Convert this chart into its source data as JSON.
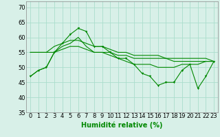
{
  "x": [
    0,
    1,
    2,
    3,
    4,
    5,
    6,
    7,
    8,
    9,
    10,
    11,
    12,
    13,
    14,
    15,
    16,
    17,
    18,
    19,
    20,
    21,
    22,
    23
  ],
  "line1": [
    47,
    49,
    50,
    55,
    58,
    61,
    63,
    62,
    57,
    57,
    55,
    53,
    53,
    51,
    48,
    47,
    44,
    45,
    45,
    49,
    51,
    43,
    47,
    52
  ],
  "line2": [
    47,
    49,
    50,
    55,
    57,
    58,
    60,
    57,
    55,
    55,
    54,
    53,
    52,
    51,
    51,
    51,
    50,
    50,
    50,
    51,
    51,
    51,
    52,
    52
  ],
  "line3": [
    55,
    55,
    55,
    55,
    56,
    57,
    57,
    56,
    55,
    55,
    55,
    54,
    54,
    53,
    53,
    53,
    53,
    53,
    52,
    52,
    52,
    52,
    52,
    52
  ],
  "line4": [
    55,
    55,
    55,
    57,
    58,
    59,
    59,
    58,
    57,
    57,
    56,
    55,
    55,
    54,
    54,
    54,
    54,
    53,
    53,
    53,
    53,
    53,
    53,
    52
  ],
  "bg_color": "#d8f0e8",
  "grid_color": "#aaddcc",
  "line_color": "#008800",
  "xlabel": "Humidité relative (%)",
  "ylim": [
    35,
    72
  ],
  "yticks": [
    35,
    40,
    45,
    50,
    55,
    60,
    65,
    70
  ],
  "xlim": [
    -0.5,
    23.5
  ],
  "xlabel_fontsize": 7,
  "tick_fontsize": 6
}
